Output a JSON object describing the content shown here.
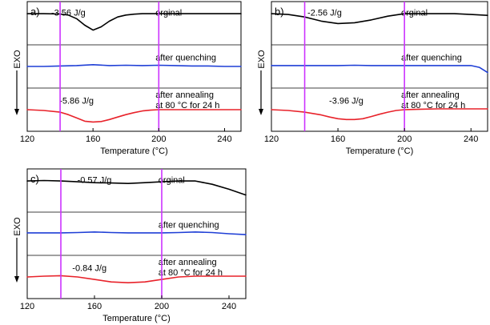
{
  "colors": {
    "marker": "#cc33ff",
    "axis": "#000000"
  },
  "chart_data": [
    {
      "type": "line",
      "panel_label": "a)",
      "xlabel": "Temperature (°C)",
      "ylabel": "EXO",
      "xlim": [
        120,
        250
      ],
      "x_ticks": [
        120,
        160,
        200,
        240
      ],
      "markers_x": [
        140,
        200
      ],
      "rows": [
        {
          "name": "orginal",
          "label": "orginal",
          "color": "#000000",
          "enthalpy": "-3.56 J/g",
          "x": [
            120,
            130,
            140,
            145,
            150,
            155,
            160,
            165,
            170,
            175,
            180,
            185,
            190,
            200,
            210,
            220,
            230,
            240,
            250
          ],
          "y": [
            0,
            0,
            -0.02,
            -0.08,
            -0.3,
            -0.7,
            -1.0,
            -0.8,
            -0.45,
            -0.2,
            -0.08,
            -0.03,
            0,
            0,
            0,
            0,
            0,
            0,
            0
          ]
        },
        {
          "name": "after quenching",
          "label": "after quenching",
          "color": "#1f3fd6",
          "enthalpy": "",
          "x": [
            120,
            130,
            140,
            150,
            160,
            170,
            180,
            190,
            200,
            210,
            220,
            230,
            240,
            250
          ],
          "y": [
            -0.05,
            -0.05,
            -0.02,
            0,
            0.05,
            0,
            0.02,
            0,
            0.02,
            0,
            -0.02,
            -0.02,
            -0.05,
            -0.05
          ]
        },
        {
          "name": "after annealing",
          "label": [
            "after annealing",
            "at 80 °C for 24 h"
          ],
          "color": "#e8222a",
          "enthalpy": "-5.86 J/g",
          "x": [
            120,
            130,
            140,
            145,
            150,
            155,
            160,
            165,
            170,
            175,
            180,
            185,
            190,
            195,
            200,
            210,
            220,
            230,
            240,
            250
          ],
          "y": [
            0,
            -0.05,
            -0.15,
            -0.3,
            -0.5,
            -0.7,
            -0.75,
            -0.72,
            -0.6,
            -0.45,
            -0.3,
            -0.18,
            -0.08,
            -0.03,
            0,
            0,
            0,
            0,
            0,
            0
          ]
        }
      ]
    },
    {
      "type": "line",
      "panel_label": "b)",
      "xlabel": "Temperature (°C)",
      "ylabel": "EXO",
      "xlim": [
        120,
        250
      ],
      "x_ticks": [
        120,
        160,
        200,
        240
      ],
      "markers_x": [
        140,
        200
      ],
      "rows": [
        {
          "name": "orginal",
          "label": "orginal",
          "color": "#000000",
          "enthalpy": "-2.56 J/g",
          "x": [
            120,
            130,
            140,
            150,
            160,
            170,
            180,
            190,
            200,
            210,
            220,
            230,
            240,
            250
          ],
          "y": [
            0,
            -0.05,
            -0.2,
            -0.45,
            -0.6,
            -0.55,
            -0.38,
            -0.15,
            0,
            0,
            0,
            0,
            -0.05,
            -0.1
          ]
        },
        {
          "name": "after quenching",
          "label": "after quenching",
          "color": "#1f3fd6",
          "enthalpy": "",
          "x": [
            120,
            130,
            140,
            150,
            160,
            170,
            180,
            190,
            200,
            210,
            220,
            230,
            240,
            245,
            250
          ],
          "y": [
            0,
            0,
            0,
            0,
            0,
            0.02,
            0,
            0,
            0,
            0,
            0,
            0,
            0,
            -0.1,
            -0.4
          ]
        },
        {
          "name": "after annealing",
          "label": [
            "after annealing",
            "at 80 °C for 24 h"
          ],
          "color": "#e8222a",
          "enthalpy": "-3.96 J/g",
          "x": [
            120,
            130,
            140,
            150,
            155,
            160,
            165,
            170,
            175,
            180,
            185,
            190,
            195,
            200,
            210,
            220,
            230,
            240,
            250
          ],
          "y": [
            0,
            -0.05,
            -0.15,
            -0.32,
            -0.45,
            -0.55,
            -0.6,
            -0.6,
            -0.55,
            -0.42,
            -0.28,
            -0.15,
            -0.05,
            0,
            0.03,
            0.05,
            0.05,
            0.05,
            0.05
          ]
        }
      ]
    },
    {
      "type": "line",
      "panel_label": "c)",
      "xlabel": "Temperature (°C)",
      "ylabel": "EXO",
      "xlim": [
        120,
        250
      ],
      "x_ticks": [
        120,
        160,
        200,
        240
      ],
      "markers_x": [
        140,
        200
      ],
      "rows": [
        {
          "name": "orginal",
          "label": "orginal",
          "color": "#000000",
          "enthalpy": "-0.57 J/g",
          "x": [
            120,
            130,
            140,
            150,
            160,
            170,
            180,
            190,
            200,
            210,
            220,
            230,
            240,
            250
          ],
          "y": [
            0,
            0.03,
            0,
            -0.05,
            -0.1,
            -0.12,
            -0.15,
            -0.1,
            -0.05,
            0,
            0,
            -0.2,
            -0.5,
            -0.85
          ]
        },
        {
          "name": "after quenching",
          "label": "after quenching",
          "color": "#1f3fd6",
          "enthalpy": "",
          "x": [
            120,
            130,
            140,
            150,
            160,
            170,
            180,
            190,
            200,
            210,
            220,
            230,
            240,
            250
          ],
          "y": [
            0,
            0,
            0,
            0.02,
            0.05,
            0.02,
            0,
            0,
            0,
            0.02,
            0.05,
            0.02,
            -0.05,
            -0.1
          ]
        },
        {
          "name": "after annealing",
          "label": [
            "after annealing",
            "at 80 °C for 24 h"
          ],
          "color": "#e8222a",
          "enthalpy": "-0.84 J/g",
          "x": [
            120,
            130,
            140,
            150,
            160,
            170,
            180,
            190,
            200,
            210,
            220,
            230,
            240,
            250
          ],
          "y": [
            0,
            0.05,
            0.08,
            0,
            -0.15,
            -0.3,
            -0.35,
            -0.3,
            -0.15,
            0,
            0.05,
            0.05,
            0.05,
            0.05
          ]
        }
      ]
    }
  ]
}
